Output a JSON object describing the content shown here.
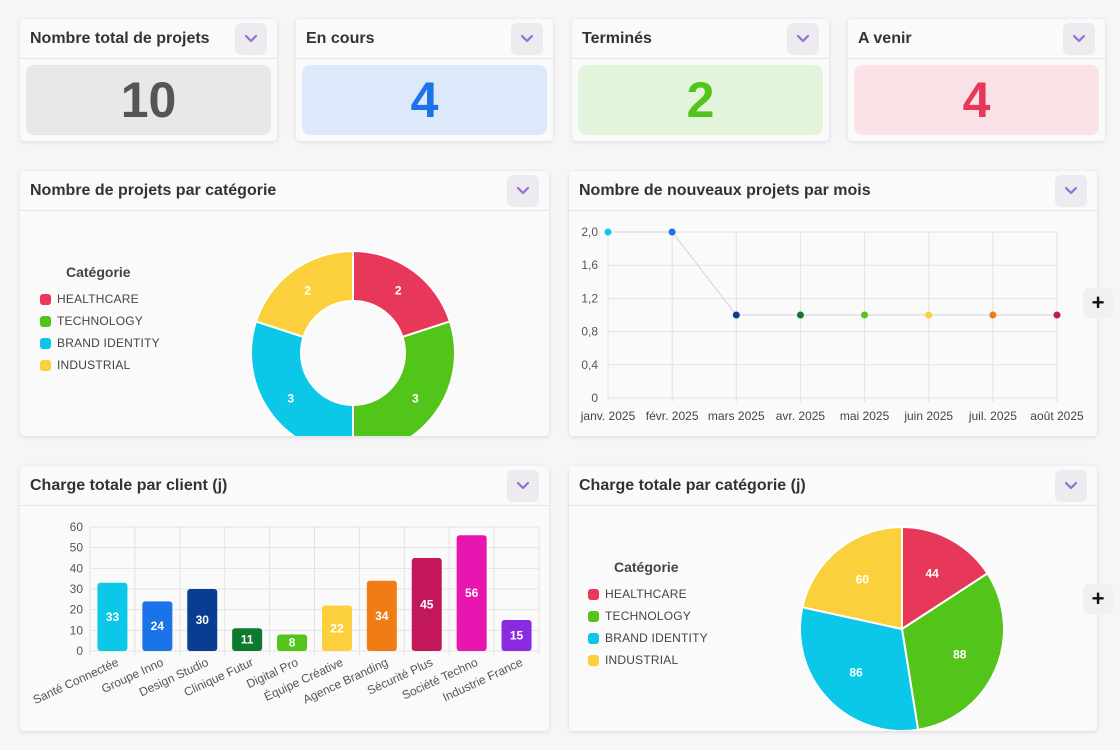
{
  "stats": [
    {
      "title": "Nombre total de projets",
      "value": "10",
      "bg": "#e8e8e8",
      "fg": "#555555"
    },
    {
      "title": "En cours",
      "value": "4",
      "bg": "#dbe9fb",
      "fg": "#1a73e8"
    },
    {
      "title": "Terminés",
      "value": "2",
      "bg": "#e3f4dd",
      "fg": "#52c41a"
    },
    {
      "title": "A venir",
      "value": "4",
      "bg": "#fbe2e6",
      "fg": "#e8385a"
    }
  ],
  "categories_legend": {
    "title": "Catégorie",
    "items": [
      {
        "label": "HEALTHCARE",
        "color": "#e8385a"
      },
      {
        "label": "TECHNOLOGY",
        "color": "#52c41a"
      },
      {
        "label": "BRAND IDENTITY",
        "color": "#0bc8e8"
      },
      {
        "label": "INDUSTRIAL",
        "color": "#fcd03c"
      }
    ]
  },
  "panels": {
    "donut_title": "Nombre de projets par catégorie",
    "line_title": "Nombre de nouveaux projets par mois",
    "bar_title": "Charge totale par client (j)",
    "pie_title": "Charge totale par catégorie (j)"
  },
  "icons": {
    "menu": "chevron-down-icon",
    "add": "plus-icon"
  },
  "plus_symbol": "+",
  "chart_data": [
    {
      "type": "pie",
      "variant": "donut",
      "categories": [
        "HEALTHCARE",
        "TECHNOLOGY",
        "BRAND IDENTITY",
        "INDUSTRIAL"
      ],
      "values": [
        2,
        3,
        3,
        2
      ],
      "colors": [
        "#e8385a",
        "#52c41a",
        "#0bc8e8",
        "#fcd03c"
      ]
    },
    {
      "type": "scatter",
      "x": [
        "janv. 2025",
        "févr. 2025",
        "mars 2025",
        "avr. 2025",
        "mai 2025",
        "juin 2025",
        "juil. 2025",
        "août 2025"
      ],
      "y": [
        2,
        2,
        1,
        1,
        1,
        1,
        1,
        1
      ],
      "colors": [
        "#0bc8e8",
        "#1a73e8",
        "#0a3d91",
        "#0e7a2e",
        "#52c41a",
        "#fcd03c",
        "#f07c16",
        "#c2185b"
      ],
      "yticks": [
        "0",
        "0,4",
        "0,8",
        "1,2",
        "1,6",
        "2,0"
      ],
      "ylim": [
        0,
        2
      ],
      "grid": true
    },
    {
      "type": "bar",
      "categories": [
        "Santé Connectée",
        "Groupe Inno",
        "Design Studio",
        "Clinique Futur",
        "Digital Pro",
        "Équipe Créative",
        "Agence Branding",
        "Sécurité Plus",
        "Société Techno",
        "Industrie France"
      ],
      "values": [
        33,
        24,
        30,
        11,
        8,
        22,
        34,
        45,
        56,
        15
      ],
      "colors": [
        "#0bc8e8",
        "#1a73e8",
        "#0a3d91",
        "#0e7a2e",
        "#52c41a",
        "#fcd03c",
        "#f07c16",
        "#c2185b",
        "#e815b0",
        "#8a2be2"
      ],
      "yticks": [
        "0",
        "10",
        "20",
        "30",
        "40",
        "50",
        "60"
      ],
      "ylim": [
        0,
        60
      ],
      "grid": true
    },
    {
      "type": "pie",
      "categories": [
        "HEALTHCARE",
        "TECHNOLOGY",
        "BRAND IDENTITY",
        "INDUSTRIAL"
      ],
      "values": [
        44,
        88,
        86,
        60
      ],
      "colors": [
        "#e8385a",
        "#52c41a",
        "#0bc8e8",
        "#fcd03c"
      ]
    }
  ]
}
